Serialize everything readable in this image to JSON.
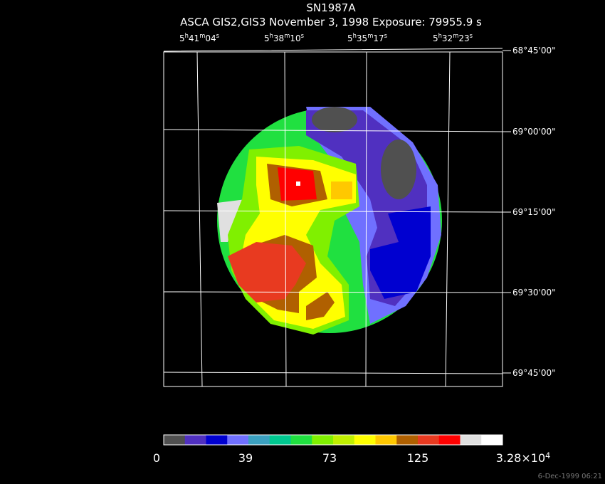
{
  "header": {
    "title": "SN1987A",
    "subtitle": "ASCA GIS2,GIS3 November 3, 1998 Exposure: 79955.9 s"
  },
  "ra_labels": [
    [
      "5",
      "h",
      "41",
      "m",
      "04",
      "s"
    ],
    [
      "5",
      "h",
      "38",
      "m",
      "10",
      "s"
    ],
    [
      "5",
      "h",
      "35",
      "m",
      "17",
      "s"
    ],
    [
      "5",
      "h",
      "32",
      "m",
      "23",
      "s"
    ]
  ],
  "dec_labels": [
    "68°45'00\"",
    "69°00'00\"",
    "69°15'00\"",
    "69°30'00\"",
    "69°45'00\""
  ],
  "colorbar": {
    "colors": [
      "#505050",
      "#5030c0",
      "#0000d0",
      "#7070ff",
      "#3ba0c0",
      "#00c890",
      "#20e040",
      "#80f000",
      "#c0f000",
      "#ffff00",
      "#ffc800",
      "#b06000",
      "#e83a20",
      "#ff0000",
      "#e0e0e0",
      "#ffffff"
    ],
    "tick_labels": [
      [
        "0"
      ],
      [
        "39"
      ],
      [
        "73"
      ],
      [
        "125"
      ],
      [
        "3.28×10",
        "4"
      ]
    ]
  },
  "timestamp": "6-Dec-1999 06:21"
}
